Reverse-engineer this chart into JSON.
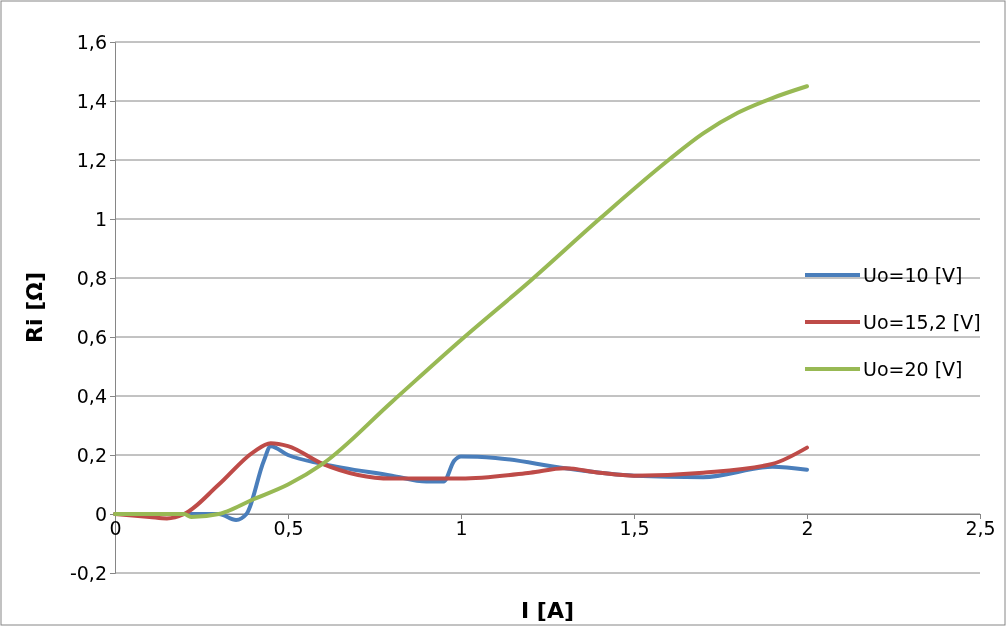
{
  "chart_data": {
    "type": "line",
    "xlabel": "I [A]",
    "ylabel": "Ri [Ω]",
    "xlim": [
      0,
      2.5
    ],
    "ylim": [
      -0.2,
      1.6
    ],
    "xticks": [
      0,
      {
        "value": 0.5,
        "label": "0,5"
      },
      1,
      {
        "value": 1.5,
        "label": "1,5"
      },
      2,
      {
        "value": 2.5,
        "label": "2,5"
      }
    ],
    "yticks": [
      {
        "value": -0.2,
        "label": "-0,2"
      },
      0,
      {
        "value": 0.2,
        "label": "0,2"
      },
      {
        "value": 0.4,
        "label": "0,4"
      },
      {
        "value": 0.6,
        "label": "0,6"
      },
      {
        "value": 0.8,
        "label": "0,8"
      },
      1,
      {
        "value": 1.2,
        "label": "1,2"
      },
      {
        "value": 1.4,
        "label": "1,4"
      },
      {
        "value": 1.6,
        "label": "1,6"
      }
    ],
    "grid": "y",
    "legend": "right",
    "marker": "none",
    "line_style": "solid",
    "series": [
      {
        "name": "Uo=10 [V]",
        "color": "#4a7ebb",
        "x": [
          0,
          0.2,
          0.3,
          0.35,
          0.38,
          0.43,
          0.45,
          0.5,
          0.6,
          0.8,
          0.9,
          0.95,
          0.98,
          1.0,
          1.1,
          1.3,
          1.5,
          1.7,
          1.9,
          2
        ],
        "values": [
          0,
          0,
          0,
          -0.02,
          0,
          0.18,
          0.23,
          0.2,
          0.17,
          0.13,
          0.11,
          0.11,
          0.18,
          0.195,
          0.19,
          0.155,
          0.13,
          0.125,
          0.16,
          0.15
        ]
      },
      {
        "name": "Uo=15,2 [V]",
        "color": "#be4b48",
        "x": [
          0,
          0.1,
          0.15,
          0.2,
          0.3,
          0.4,
          0.45,
          0.5,
          0.6,
          0.8,
          1.0,
          1.2,
          1.3,
          1.4,
          1.5,
          1.7,
          1.9,
          2
        ],
        "values": [
          0,
          -0.01,
          -0.015,
          0,
          0.1,
          0.21,
          0.24,
          0.23,
          0.17,
          0.12,
          0.12,
          0.14,
          0.155,
          0.14,
          0.13,
          0.14,
          0.17,
          0.225
        ]
      },
      {
        "name": "Uo=20 [V]",
        "color": "#98b954",
        "x": [
          0,
          0.2,
          0.22,
          0.3,
          0.4,
          0.5,
          0.6,
          0.8,
          1.0,
          1.2,
          1.4,
          1.6,
          1.7,
          1.8,
          1.9,
          2
        ],
        "values": [
          0,
          0,
          -0.01,
          0,
          0.05,
          0.1,
          0.17,
          0.38,
          0.59,
          0.79,
          1.0,
          1.2,
          1.29,
          1.36,
          1.41,
          1.45
        ]
      }
    ]
  }
}
